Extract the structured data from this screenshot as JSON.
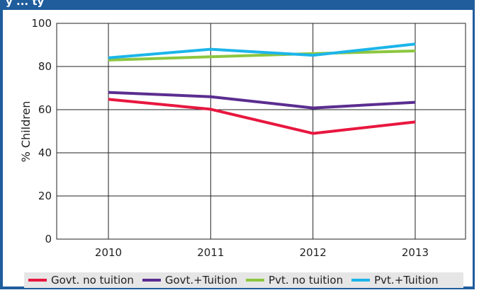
{
  "header": {
    "title_fragment": "y ... ty"
  },
  "chart_data": {
    "type": "line",
    "title": "",
    "xlabel": "",
    "ylabel": "% Children",
    "categories": [
      "2010",
      "2011",
      "2012",
      "2013"
    ],
    "ylim": [
      0,
      100
    ],
    "yticks": [
      "0",
      "20",
      "40",
      "60",
      "80",
      "100"
    ],
    "grid": true,
    "legend_position": "bottom",
    "series": [
      {
        "name": "Govt. no tuition",
        "color": "#e8173f",
        "values": [
          64.8,
          60.2,
          49.0,
          54.3
        ]
      },
      {
        "name": "Govt.+Tuition",
        "color": "#5b2d90",
        "values": [
          68.0,
          66.0,
          60.8,
          63.4
        ]
      },
      {
        "name": "Pvt. no tuition",
        "color": "#8cc63f",
        "values": [
          83.0,
          84.5,
          86.0,
          87.2
        ]
      },
      {
        "name": "Pvt.+Tuition",
        "color": "#1cb5ea",
        "values": [
          84.0,
          88.0,
          85.2,
          90.4
        ]
      }
    ]
  }
}
